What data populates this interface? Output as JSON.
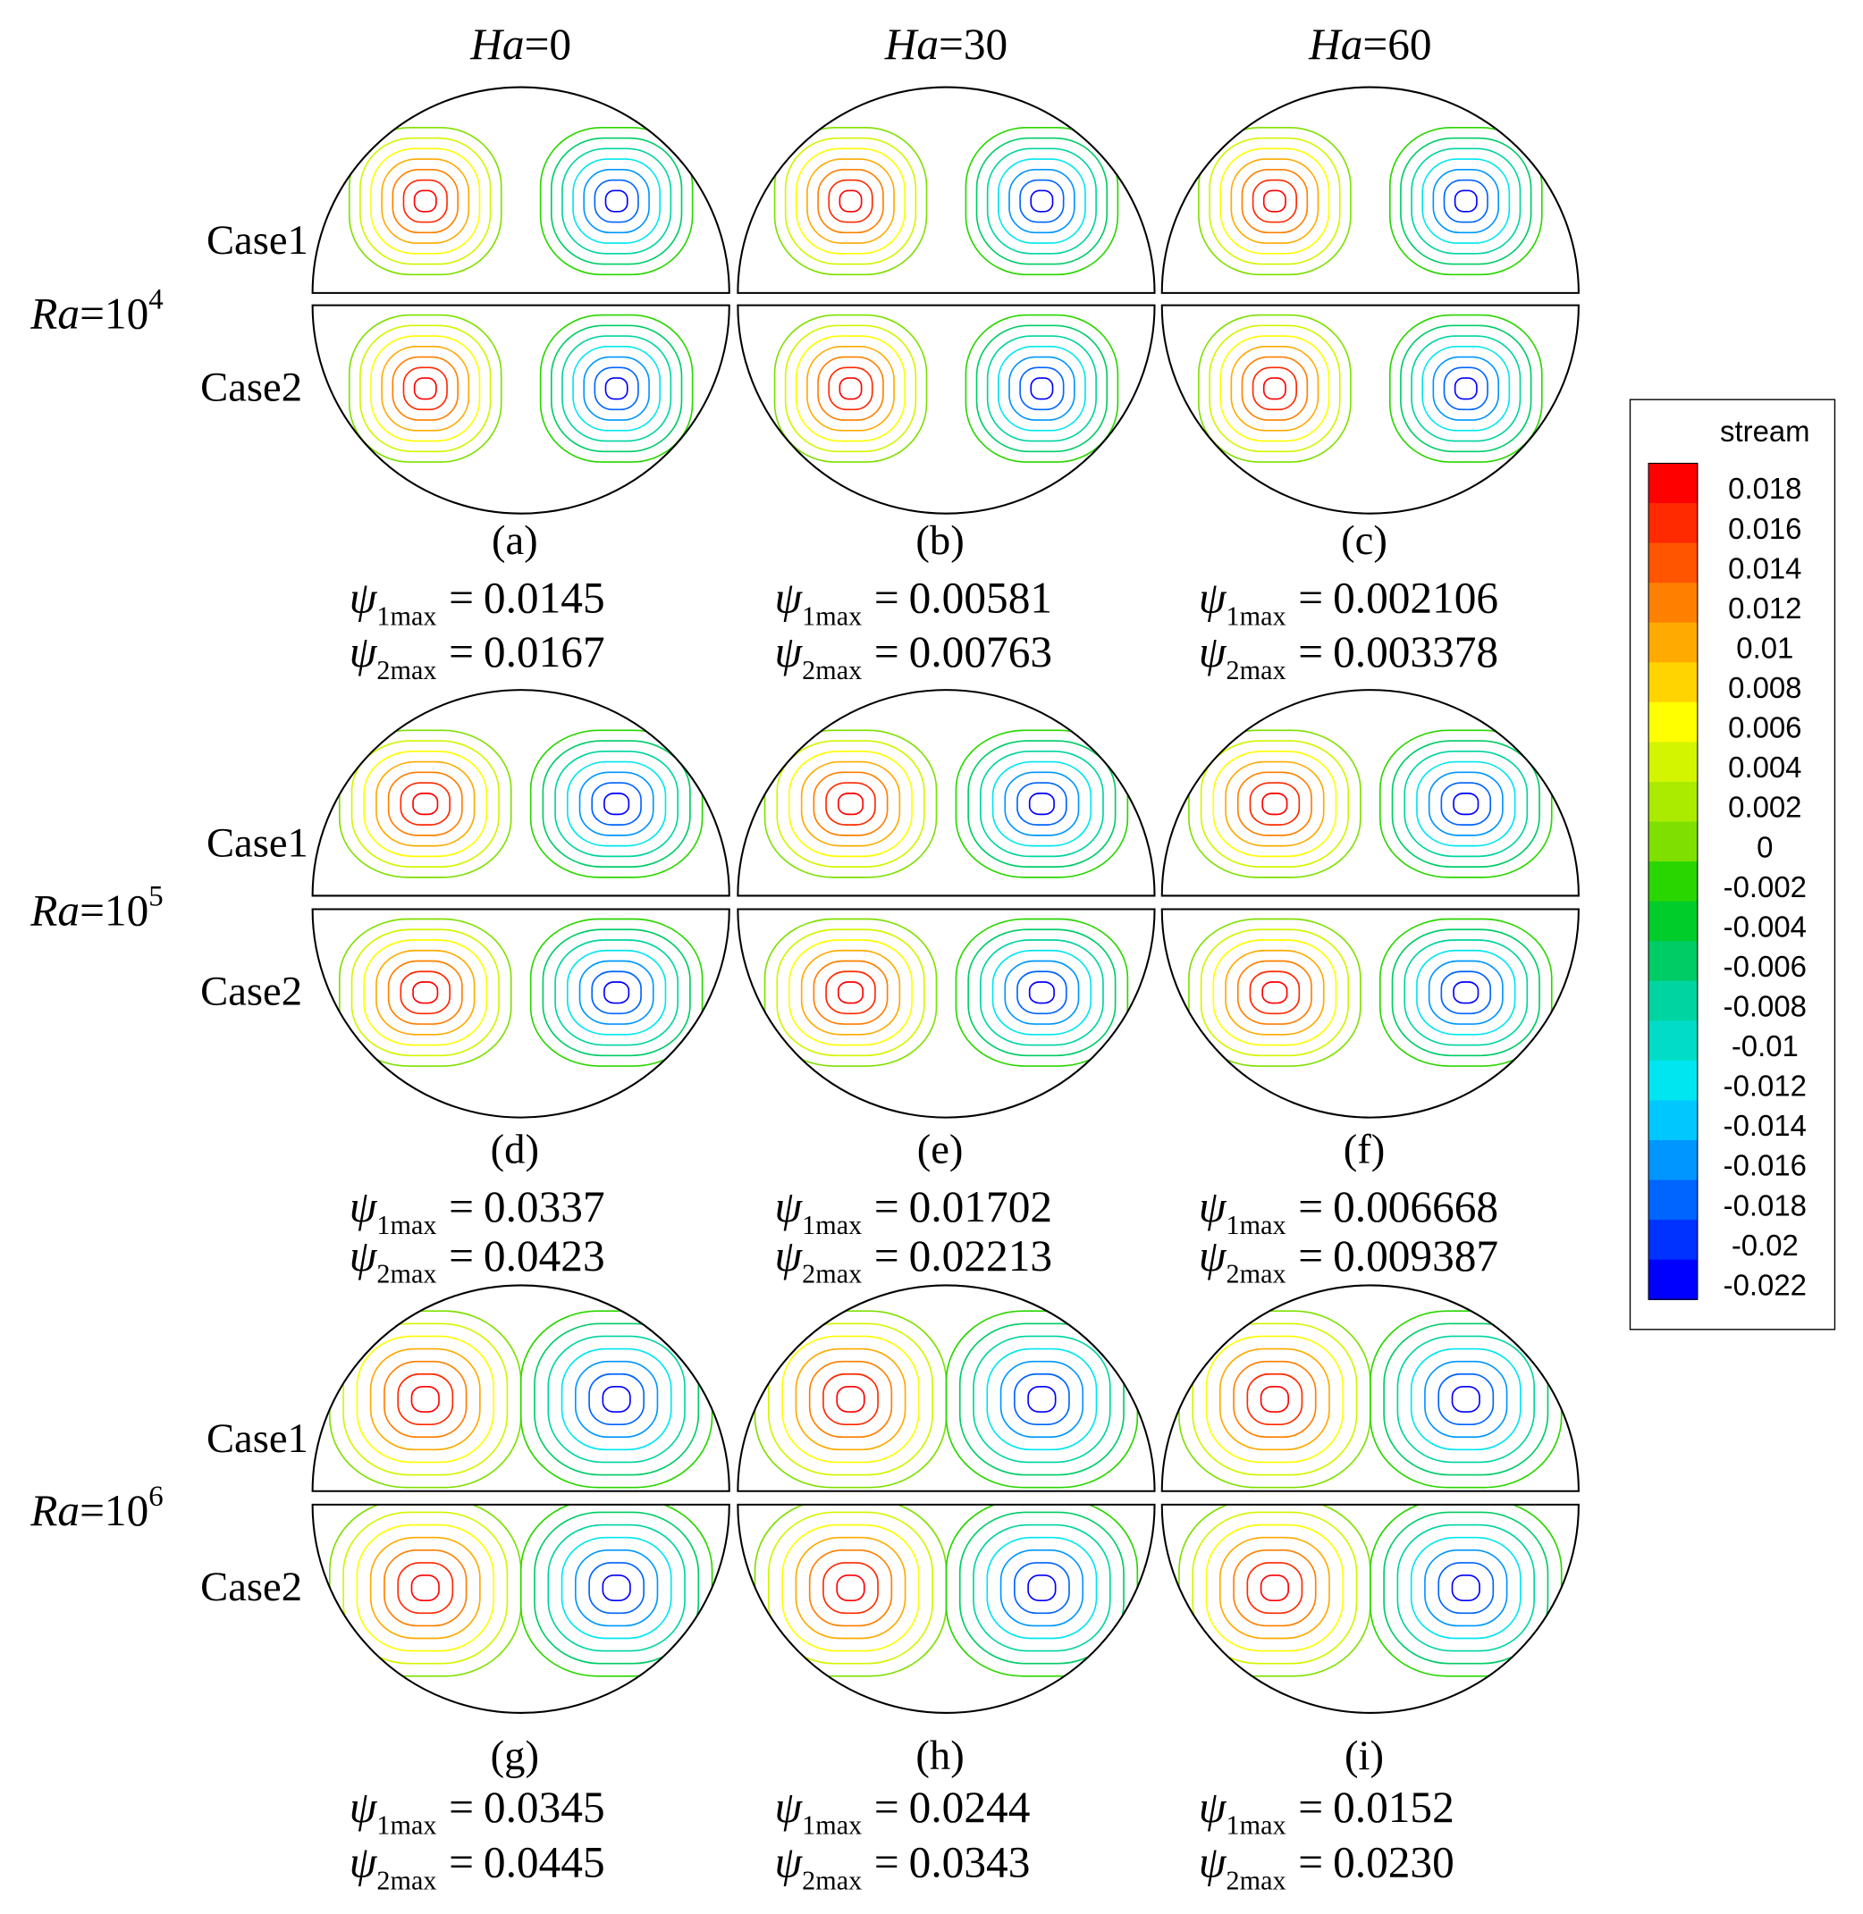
{
  "columns": [
    {
      "symbol": "Ha",
      "value": "=0"
    },
    {
      "symbol": "Ha",
      "value": "=30"
    },
    {
      "symbol": "Ha",
      "value": "=60"
    }
  ],
  "rows": [
    {
      "symbol": "Ra",
      "value": "=10",
      "exponent": "4"
    },
    {
      "symbol": "Ra",
      "value": "=10",
      "exponent": "5"
    },
    {
      "symbol": "Ra",
      "value": "=10",
      "exponent": "6"
    }
  ],
  "case_labels": [
    "Case1",
    "Case2"
  ],
  "psi_symbol": "ψ",
  "psi_subscripts": [
    "1max",
    "2max"
  ],
  "equals": "=",
  "panels": [
    {
      "label": "(a)",
      "psi1": "0.0145",
      "psi2": "0.0167"
    },
    {
      "label": "(b)",
      "psi1": "0.00581",
      "psi2": "0.00763"
    },
    {
      "label": "(c)",
      "psi1": "0.002106",
      "psi2": "0.003378"
    },
    {
      "label": "(d)",
      "psi1": "0.0337",
      "psi2": "0.0423"
    },
    {
      "label": "(e)",
      "psi1": "0.01702",
      "psi2": "0.02213"
    },
    {
      "label": "(f)",
      "psi1": "0.006668",
      "psi2": "0.009387"
    },
    {
      "label": "(g)",
      "psi1": "0.0345",
      "psi2": "0.0445"
    },
    {
      "label": "(h)",
      "psi1": "0.0244",
      "psi2": "0.0343"
    },
    {
      "label": "(i)",
      "psi1": "0.0152",
      "psi2": "0.0230"
    }
  ],
  "legend": {
    "title": "stream",
    "levels": [
      0.018,
      0.016,
      0.014,
      0.012,
      0.01,
      0.008,
      0.006,
      0.004,
      0.002,
      0,
      -0.002,
      -0.004,
      -0.006,
      -0.008,
      -0.01,
      -0.012,
      -0.014,
      -0.016,
      -0.018,
      -0.02,
      -0.022
    ],
    "colors": [
      "#ff0000",
      "#ff2a00",
      "#ff5500",
      "#ff7f00",
      "#ffaa00",
      "#ffd400",
      "#ffff00",
      "#d4f500",
      "#aaeb00",
      "#7fe000",
      "#2ad600",
      "#00cc2a",
      "#00cc66",
      "#00d4a0",
      "#00dcc8",
      "#00e6f0",
      "#00c8ff",
      "#0096ff",
      "#0064ff",
      "#0032ff",
      "#0000ff"
    ]
  }
}
